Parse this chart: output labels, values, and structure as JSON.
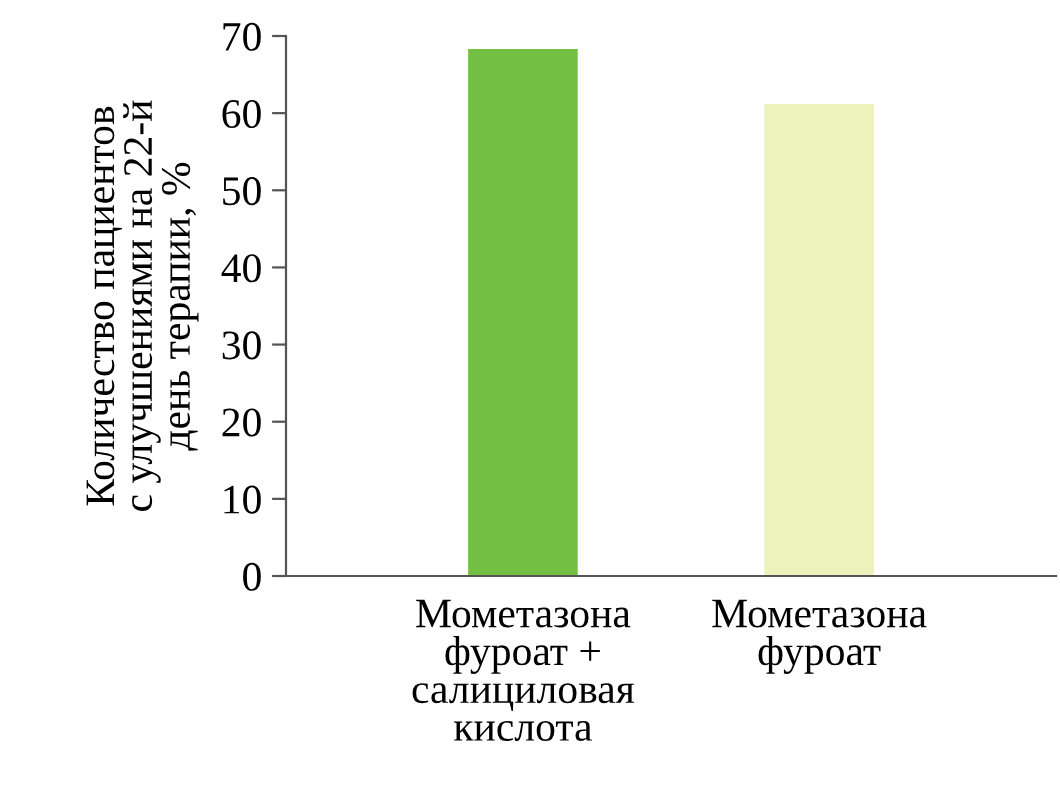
{
  "chart_data": {
    "type": "bar",
    "ylabel": "Количество пациентов\nс улучшениями на 22-й\nдень терапии, %",
    "categories": [
      "Мометазона\nфуроат +\nсалициловая\nкислота",
      "Мометазона\nфуроат"
    ],
    "values": [
      68.3,
      61.2
    ],
    "colors": [
      "#72bf44",
      "#edf2bd"
    ],
    "ylim": [
      0,
      70
    ],
    "yticks": [
      0,
      10,
      20,
      30,
      40,
      50,
      60,
      70
    ],
    "grid": false,
    "legend": false
  }
}
